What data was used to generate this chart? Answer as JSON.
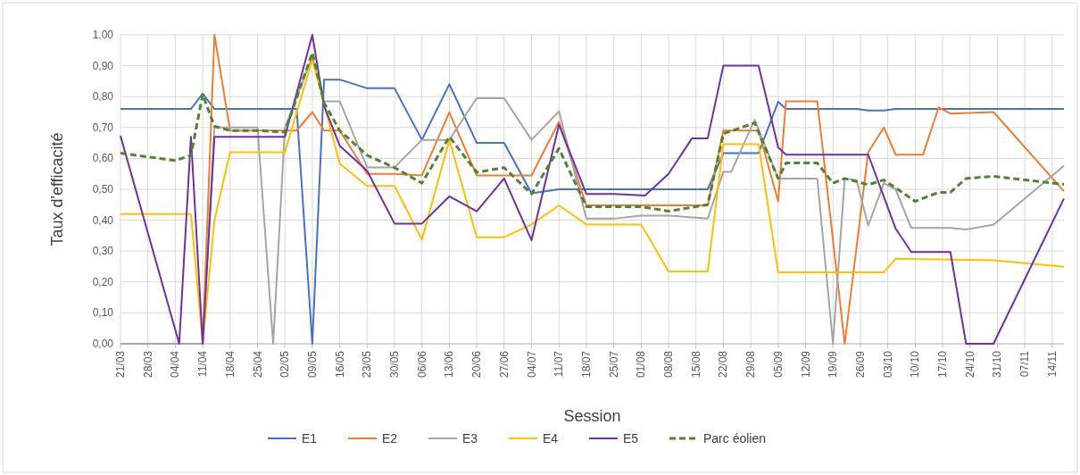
{
  "chart_data": {
    "type": "line",
    "xlabel": "Session",
    "ylabel": "Taux d'efficacité",
    "xlim": [
      "--03-21",
      "--11-17"
    ],
    "ylim": [
      0,
      1
    ],
    "xticks": [
      {
        "value": "--03-21",
        "label": "21/03"
      },
      {
        "value": "--03-28",
        "label": "28/03"
      },
      {
        "value": "--04-04",
        "label": "04/04"
      },
      {
        "value": "--04-11",
        "label": "11/04"
      },
      {
        "value": "--04-18",
        "label": "18/04"
      },
      {
        "value": "--04-25",
        "label": "25/04"
      },
      {
        "value": "--05-02",
        "label": "02/05"
      },
      {
        "value": "--05-09",
        "label": "09/05"
      },
      {
        "value": "--05-16",
        "label": "16/05"
      },
      {
        "value": "--05-23",
        "label": "23/05"
      },
      {
        "value": "--05-30",
        "label": "30/05"
      },
      {
        "value": "--06-06",
        "label": "06/06"
      },
      {
        "value": "--06-13",
        "label": "13/06"
      },
      {
        "value": "--06-20",
        "label": "20/06"
      },
      {
        "value": "--06-27",
        "label": "27/06"
      },
      {
        "value": "--07-04",
        "label": "04/07"
      },
      {
        "value": "--07-11",
        "label": "11/07"
      },
      {
        "value": "--07-18",
        "label": "18/07"
      },
      {
        "value": "--07-25",
        "label": "25/07"
      },
      {
        "value": "--08-01",
        "label": "01/08"
      },
      {
        "value": "--08-08",
        "label": "08/08"
      },
      {
        "value": "--08-15",
        "label": "15/08"
      },
      {
        "value": "--08-22",
        "label": "22/08"
      },
      {
        "value": "--08-29",
        "label": "29/08"
      },
      {
        "value": "--09-05",
        "label": "05/09"
      },
      {
        "value": "--09-12",
        "label": "12/09"
      },
      {
        "value": "--09-19",
        "label": "19/09"
      },
      {
        "value": "--09-26",
        "label": "26/09"
      },
      {
        "value": "--10-03",
        "label": "03/10"
      },
      {
        "value": "--10-10",
        "label": "10/10"
      },
      {
        "value": "--10-17",
        "label": "17/10"
      },
      {
        "value": "--10-24",
        "label": "24/10"
      },
      {
        "value": "--10-31",
        "label": "31/10"
      },
      {
        "value": "--11-07",
        "label": "07/11"
      },
      {
        "value": "--11-14",
        "label": "14/11"
      }
    ],
    "yticks": [
      {
        "value": 0,
        "label": "0,00"
      },
      {
        "value": 0.1,
        "label": "0,10"
      },
      {
        "value": 0.2,
        "label": "0,20"
      },
      {
        "value": 0.3,
        "label": "0,30"
      },
      {
        "value": 0.4,
        "label": "0,40"
      },
      {
        "value": 0.5,
        "label": "0,50"
      },
      {
        "value": 0.6,
        "label": "0,60"
      },
      {
        "value": 0.7,
        "label": "0,70"
      },
      {
        "value": 0.8,
        "label": "0,80"
      },
      {
        "value": 0.9,
        "label": "0,90"
      },
      {
        "value": 1,
        "label": "1,00"
      }
    ],
    "grid": true,
    "legend": "bottom",
    "marker": "none",
    "series": [
      {
        "name": "E1",
        "color": "#4472c4",
        "x": [
          "--03-21",
          "--04-08",
          "--04-11",
          "--04-14",
          "--05-05",
          "--05-09",
          "--05-12",
          "--05-16",
          "--05-23",
          "--05-30",
          "--06-06",
          "--06-13",
          "--06-20",
          "--06-27",
          "--07-04",
          "--07-11",
          "--08-18",
          "--08-22",
          "--08-31",
          "--09-05",
          "--09-07",
          "--09-25",
          "--09-28",
          "--10-02",
          "--10-05",
          "--11-17"
        ],
        "values": [
          0.76,
          0.76,
          0.81,
          0.76,
          0.76,
          0,
          0.855,
          0.855,
          0.827,
          0.827,
          0.66,
          0.84,
          0.65,
          0.65,
          0.487,
          0.5,
          0.5,
          0.617,
          0.617,
          0.783,
          0.76,
          0.76,
          0.755,
          0.755,
          0.76,
          0.76
        ]
      },
      {
        "name": "E2",
        "color": "#ed7d31",
        "x": [
          "--03-21",
          "--04-11",
          "--04-14",
          "--04-18",
          "--05-05",
          "--05-09",
          "--05-12",
          "--05-16",
          "--05-23",
          "--05-30",
          "--06-06",
          "--06-13",
          "--06-20",
          "--07-04",
          "--07-11",
          "--07-18",
          "--08-18",
          "--08-22",
          "--08-31",
          "--09-05",
          "--09-07",
          "--09-15",
          "--09-22",
          "--09-28",
          "--10-02",
          "--10-05",
          "--10-12",
          "--10-16",
          "--10-19",
          "--10-30",
          "--11-17"
        ],
        "values": [
          0,
          0,
          1,
          0.69,
          0.69,
          0.75,
          0.69,
          0.69,
          0.55,
          0.55,
          0.545,
          0.749,
          0.545,
          0.545,
          0.718,
          0.448,
          0.448,
          0.69,
          0.69,
          0.461,
          0.785,
          0.785,
          0,
          0.62,
          0.7,
          0.612,
          0.612,
          0.765,
          0.745,
          0.75,
          0.494
        ]
      },
      {
        "name": "E3",
        "color": "#a5a5a5",
        "x": [
          "--03-21",
          "--04-11",
          "--04-14",
          "--04-25",
          "--04-29",
          "--05-02",
          "--05-09",
          "--05-12",
          "--05-16",
          "--05-23",
          "--05-30",
          "--06-06",
          "--06-13",
          "--06-20",
          "--06-27",
          "--07-04",
          "--07-11",
          "--07-18",
          "--07-25",
          "--08-01",
          "--08-08",
          "--08-18",
          "--08-22",
          "--08-24",
          "--08-30",
          "--09-05",
          "--09-15",
          "--09-19",
          "--09-22",
          "--09-25",
          "--09-28",
          "--10-02",
          "--10-05",
          "--10-09",
          "--10-19",
          "--10-23",
          "--10-30",
          "--11-17"
        ],
        "values": [
          0,
          0,
          0.7,
          0.7,
          0,
          0.7,
          0.93,
          0.785,
          0.785,
          0.571,
          0.571,
          0.66,
          0.66,
          0.795,
          0.795,
          0.66,
          0.752,
          0.405,
          0.405,
          0.415,
          0.415,
          0.405,
          0.556,
          0.556,
          0.725,
          0.535,
          0.535,
          0,
          0.535,
          0.53,
          0.383,
          0.52,
          0.5,
          0.375,
          0.375,
          0.37,
          0.385,
          0.576
        ]
      },
      {
        "name": "E4",
        "color": "#ffc000",
        "x": [
          "--03-21",
          "--04-08",
          "--04-11",
          "--04-14",
          "--04-18",
          "--05-02",
          "--05-09",
          "--05-16",
          "--05-23",
          "--05-30",
          "--06-06",
          "--06-13",
          "--06-20",
          "--06-27",
          "--07-04",
          "--07-11",
          "--07-18",
          "--08-01",
          "--08-08",
          "--08-18",
          "--08-22",
          "--08-31",
          "--09-05",
          "--10-02",
          "--10-05",
          "--10-30",
          "--11-17"
        ],
        "values": [
          0.42,
          0.42,
          0,
          0.4,
          0.62,
          0.62,
          0.92,
          0.583,
          0.511,
          0.511,
          0.337,
          0.66,
          0.345,
          0.345,
          0.386,
          0.448,
          0.386,
          0.386,
          0.234,
          0.234,
          0.646,
          0.646,
          0.231,
          0.231,
          0.275,
          0.27,
          0.249
        ]
      },
      {
        "name": "E5",
        "color": "#7030a0",
        "x": [
          "--03-21",
          "--04-05",
          "--04-08",
          "--04-11",
          "--04-14",
          "--05-02",
          "--05-09",
          "--05-12",
          "--05-16",
          "--05-23",
          "--05-30",
          "--06-06",
          "--06-13",
          "--06-20",
          "--06-27",
          "--07-04",
          "--07-11",
          "--07-18",
          "--07-25",
          "--08-02",
          "--08-08",
          "--08-14",
          "--08-18",
          "--08-22",
          "--08-31",
          "--09-05",
          "--09-07",
          "--09-28",
          "--10-05",
          "--10-09",
          "--10-19",
          "--10-23",
          "--10-30",
          "--11-17"
        ],
        "values": [
          0.673,
          0,
          0.67,
          0,
          0.67,
          0.67,
          1,
          0.77,
          0.641,
          0.56,
          0.389,
          0.389,
          0.477,
          0.429,
          0.535,
          0.335,
          0.709,
          0.485,
          0.485,
          0.48,
          0.55,
          0.665,
          0.665,
          0.9,
          0.9,
          0.636,
          0.612,
          0.612,
          0.373,
          0.297,
          0.297,
          0,
          0,
          0.47
        ]
      },
      {
        "name": "Parc éolien",
        "color": "#548235",
        "line_style": "dashed",
        "x": [
          "--03-21",
          "--04-04",
          "--04-08",
          "--04-11",
          "--04-14",
          "--04-18",
          "--04-25",
          "--05-02",
          "--05-09",
          "--05-12",
          "--05-16",
          "--05-23",
          "--05-30",
          "--06-06",
          "--06-13",
          "--06-20",
          "--06-27",
          "--07-04",
          "--07-11",
          "--07-18",
          "--08-01",
          "--08-08",
          "--08-18",
          "--08-22",
          "--08-30",
          "--09-05",
          "--09-07",
          "--09-15",
          "--09-19",
          "--09-22",
          "--09-25",
          "--09-28",
          "--10-02",
          "--10-05",
          "--10-10",
          "--10-16",
          "--10-19",
          "--10-23",
          "--10-30",
          "--11-17"
        ],
        "values": [
          0.617,
          0.593,
          0.61,
          0.807,
          0.704,
          0.69,
          0.69,
          0.685,
          0.942,
          0.78,
          0.69,
          0.61,
          0.57,
          0.52,
          0.67,
          0.555,
          0.57,
          0.485,
          0.632,
          0.444,
          0.444,
          0.429,
          0.45,
          0.68,
          0.715,
          0.535,
          0.585,
          0.585,
          0.52,
          0.535,
          0.525,
          0.515,
          0.53,
          0.505,
          0.461,
          0.49,
          0.49,
          0.535,
          0.542,
          0.516
        ]
      }
    ]
  }
}
